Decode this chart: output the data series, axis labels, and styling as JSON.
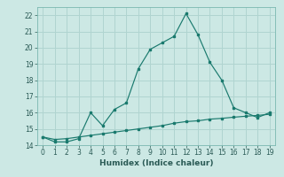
{
  "x": [
    0,
    1,
    2,
    3,
    4,
    5,
    6,
    7,
    8,
    9,
    10,
    11,
    12,
    13,
    14,
    15,
    16,
    17,
    18,
    19
  ],
  "y_main": [
    14.5,
    14.2,
    14.2,
    14.4,
    16.0,
    15.2,
    16.2,
    16.6,
    18.7,
    19.9,
    20.3,
    20.7,
    22.1,
    20.8,
    19.1,
    18.0,
    16.3,
    16.0,
    15.7,
    16.0
  ],
  "y_base": [
    14.5,
    14.35,
    14.4,
    14.5,
    14.6,
    14.7,
    14.8,
    14.9,
    15.0,
    15.1,
    15.2,
    15.35,
    15.45,
    15.5,
    15.6,
    15.65,
    15.72,
    15.78,
    15.83,
    15.9
  ],
  "line_color": "#1a7a6e",
  "bg_color": "#cce8e4",
  "grid_color": "#b0d4d0",
  "xlabel": "Humidex (Indice chaleur)",
  "ylim": [
    14,
    22.5
  ],
  "yticks": [
    14,
    15,
    16,
    17,
    18,
    19,
    20,
    21,
    22
  ],
  "xticks": [
    0,
    1,
    2,
    3,
    4,
    5,
    6,
    7,
    8,
    9,
    10,
    11,
    12,
    13,
    14,
    15,
    16,
    17,
    18,
    19
  ],
  "tick_fontsize": 5.5,
  "xlabel_fontsize": 6.5
}
